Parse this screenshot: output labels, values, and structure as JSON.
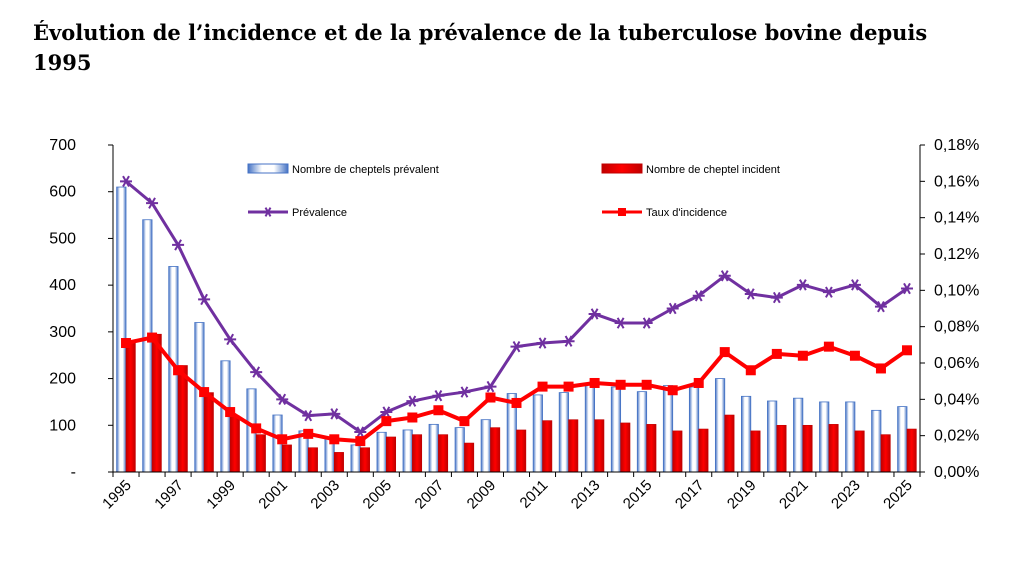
{
  "title": "Évolution de l’incidence et de la prévalence de la tuberculose bovine depuis 1995",
  "chart_data": {
    "type": "bar",
    "title": "Évolution de l’incidence et de la prévalence de la tuberculose bovine depuis 1995",
    "x": [
      1995,
      1996,
      1997,
      1998,
      1999,
      2000,
      2001,
      2002,
      2003,
      2004,
      2005,
      2006,
      2007,
      2008,
      2009,
      2010,
      2011,
      2012,
      2013,
      2014,
      2015,
      2016,
      2017,
      2018,
      2019,
      2020,
      2021,
      2022,
      2023,
      2024,
      2025
    ],
    "x_tick_labels": [
      "1995",
      "1997",
      "1999",
      "2001",
      "2003",
      "2005",
      "2007",
      "2009",
      "2011",
      "2013",
      "2015",
      "2017",
      "2019",
      "2021",
      "2023",
      "2025"
    ],
    "y_left": {
      "lim": [
        0,
        700
      ],
      "tick_labels": [
        "-",
        "100",
        "200",
        "300",
        "400",
        "500",
        "600",
        "700"
      ],
      "tick_values": [
        0,
        100,
        200,
        300,
        400,
        500,
        600,
        700
      ]
    },
    "y_right": {
      "lim": [
        0,
        0.0018
      ],
      "tick_labels": [
        "0,00%",
        "0,02%",
        "0,04%",
        "0,06%",
        "0,08%",
        "0,10%",
        "0,12%",
        "0,14%",
        "0,16%",
        "0,18%"
      ],
      "tick_values": [
        0,
        0.0002,
        0.0004,
        0.0006,
        0.0008,
        0.001,
        0.0012,
        0.0014,
        0.0016,
        0.0018
      ]
    },
    "grid": false,
    "legend_position": "top",
    "series": [
      {
        "name": "Nombre de cheptels prévalent",
        "type": "bar",
        "axis": "left",
        "color": "#4472C4",
        "values": [
          610,
          540,
          440,
          320,
          238,
          178,
          122,
          88,
          72,
          58,
          85,
          90,
          102,
          95,
          112,
          168,
          165,
          170,
          188,
          182,
          172,
          185,
          182,
          200,
          162,
          152,
          158,
          150,
          150,
          132,
          140
        ]
      },
      {
        "name": "Nombre de cheptel incident",
        "type": "bar",
        "axis": "left",
        "color": "#FF0000",
        "values": [
          280,
          295,
          228,
          170,
          120,
          80,
          58,
          52,
          42,
          52,
          75,
          80,
          80,
          62,
          95,
          90,
          110,
          112,
          112,
          105,
          102,
          88,
          92,
          122,
          88,
          100,
          100,
          102,
          88,
          80,
          92
        ]
      },
      {
        "name": "Prévalence",
        "type": "line",
        "axis": "right",
        "color": "#7030A0",
        "marker": "star",
        "values": [
          0.0016,
          0.00148,
          0.00125,
          0.00095,
          0.00073,
          0.00055,
          0.0004,
          0.00031,
          0.00032,
          0.00022,
          0.00033,
          0.00039,
          0.00042,
          0.00044,
          0.00047,
          0.00069,
          0.00071,
          0.00072,
          0.00087,
          0.00082,
          0.00082,
          0.0009,
          0.00097,
          0.00108,
          0.00098,
          0.00096,
          0.00103,
          0.00099,
          0.00103,
          0.00091,
          0.00101
        ]
      },
      {
        "name": "Taux d'incidence",
        "type": "line",
        "axis": "right",
        "color": "#FF0000",
        "marker": "square",
        "values": [
          0.00071,
          0.00074,
          0.00056,
          0.00044,
          0.00033,
          0.00024,
          0.00018,
          0.00021,
          0.00018,
          0.00017,
          0.00028,
          0.0003,
          0.00034,
          0.00028,
          0.00041,
          0.00038,
          0.00047,
          0.00047,
          0.00049,
          0.00048,
          0.00048,
          0.00045,
          0.00049,
          0.00066,
          0.00056,
          0.00065,
          0.00064,
          0.00069,
          0.00064,
          0.00057,
          0.00067
        ]
      }
    ]
  }
}
